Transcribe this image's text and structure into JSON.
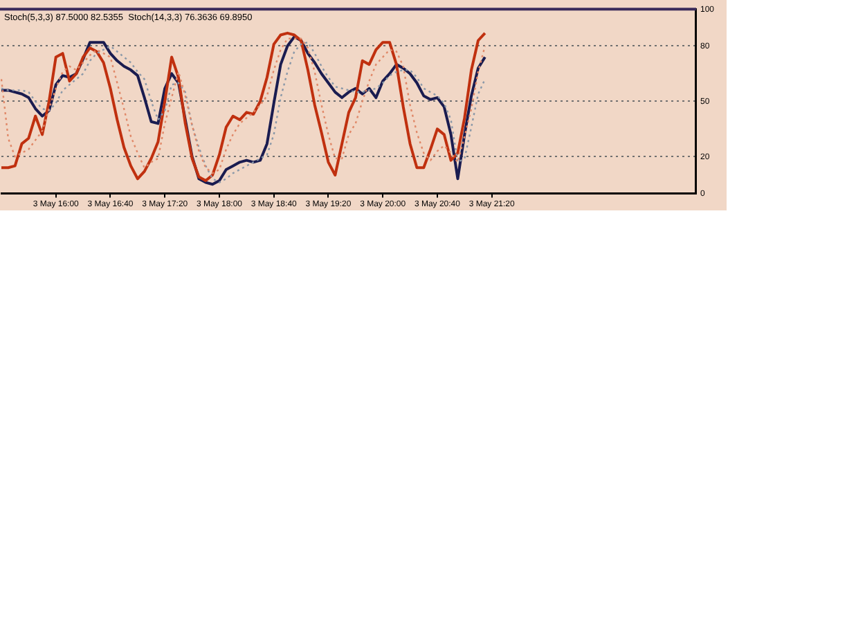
{
  "chart_data": {
    "type": "line",
    "title": "Stoch(5,3,3) 87.5000 82.5355  Stoch(14,3,3) 76.3636 69.8950",
    "categories": [
      null,
      null,
      null,
      null,
      null,
      null,
      null,
      null,
      "3 May 16:00",
      null,
      null,
      null,
      null,
      null,
      null,
      null,
      "3 May 16:40",
      null,
      null,
      null,
      null,
      null,
      null,
      null,
      "3 May 17:20",
      null,
      null,
      null,
      null,
      null,
      null,
      null,
      "3 May 18:00",
      null,
      null,
      null,
      null,
      null,
      null,
      null,
      "3 May 18:40",
      null,
      null,
      null,
      null,
      null,
      null,
      null,
      "3 May 19:20",
      null,
      null,
      null,
      null,
      null,
      null,
      null,
      "3 May 20:00",
      null,
      null,
      null,
      null,
      null,
      null,
      null,
      "3 May 20:40",
      null,
      null,
      null,
      null,
      null,
      null,
      null,
      "3 May 21:20",
      null,
      null,
      null,
      null,
      null,
      null,
      null,
      null,
      null,
      null,
      null,
      null,
      null,
      null,
      null,
      null,
      null,
      null,
      null,
      null,
      null,
      null,
      null,
      null,
      null,
      null,
      null,
      null,
      null,
      null
    ],
    "ylim": [
      0,
      100
    ],
    "yticks": [
      0,
      20,
      50,
      80,
      100
    ],
    "grid": "y",
    "legend": false,
    "series": [
      {
        "color": "#e08868",
        "line_style": "dotted",
        "values": [
          62,
          30,
          20,
          22,
          24,
          29,
          34,
          46,
          57,
          66,
          69,
          67,
          71,
          75,
          78,
          76,
          74,
          60,
          46,
          31,
          22,
          14,
          17,
          19,
          38,
          52,
          66,
          53,
          37,
          23,
          14,
          11,
          13,
          24,
          32,
          38,
          41,
          44,
          48,
          53,
          67,
          78,
          84,
          84,
          84,
          79,
          66,
          48,
          32,
          19,
          19,
          32,
          38,
          50,
          61,
          70,
          74,
          78,
          77,
          69,
          48,
          33,
          22,
          18,
          23,
          26,
          22,
          17,
          31,
          46,
          66,
          80,
          null,
          null,
          null,
          null,
          null,
          null,
          null,
          null,
          null,
          null,
          null,
          null,
          null,
          null,
          null,
          null,
          null,
          null,
          null,
          null,
          null,
          null,
          null,
          null,
          null,
          null,
          null,
          null,
          null,
          null,
          null
        ]
      },
      {
        "color": "#8a98a8",
        "line_style": "dotted",
        "values": [
          57,
          56,
          56,
          56,
          55,
          50,
          46,
          45,
          49,
          56,
          59,
          62,
          65,
          72,
          76,
          78,
          80,
          77,
          74,
          71,
          66,
          62,
          50,
          40,
          45,
          59,
          60,
          55,
          37,
          25,
          15,
          8,
          6,
          8,
          11,
          13,
          15,
          17,
          19,
          21,
          32,
          52,
          66,
          77,
          81,
          82,
          76,
          69,
          63,
          58,
          57,
          56,
          55,
          55,
          56,
          57,
          60,
          64,
          66,
          67,
          67,
          63,
          57,
          55,
          53,
          49,
          40,
          17,
          19,
          36,
          54,
          62,
          null,
          null,
          null,
          null,
          null,
          null,
          null,
          null,
          null,
          null,
          null,
          null,
          null,
          null,
          null,
          null,
          null,
          null,
          null,
          null,
          null,
          null,
          null,
          null,
          null,
          null,
          null,
          null,
          null,
          null,
          null
        ]
      },
      {
        "color": "#c0300f",
        "line_style": "solid",
        "values": [
          14,
          14,
          15,
          27,
          30,
          42,
          32,
          50,
          74,
          76,
          61,
          65,
          74,
          79,
          77,
          71,
          57,
          40,
          25,
          15,
          8,
          12,
          19,
          28,
          50,
          74,
          63,
          38,
          19,
          9,
          7,
          10,
          21,
          36,
          42,
          40,
          44,
          43,
          50,
          63,
          81,
          86,
          87,
          86,
          83,
          67,
          48,
          33,
          17,
          10,
          27,
          44,
          52,
          72,
          70,
          78,
          82,
          82,
          70,
          47,
          27,
          14,
          14,
          24,
          35,
          32,
          18,
          22,
          41,
          67,
          83,
          87,
          null,
          null,
          null,
          null,
          null,
          null,
          null,
          null,
          null,
          null,
          null,
          null,
          null,
          null,
          null,
          null,
          null,
          null,
          null,
          null,
          null,
          null,
          null,
          null,
          null,
          null,
          null,
          null,
          null,
          null,
          null
        ]
      },
      {
        "color": "#1a1c50",
        "line_style": "solid",
        "values": [
          56,
          56,
          55,
          54,
          52,
          46,
          42,
          45,
          59,
          64,
          63,
          65,
          73,
          82,
          82,
          82,
          76,
          72,
          69,
          67,
          64,
          52,
          39,
          38,
          57,
          65,
          60,
          40,
          20,
          8,
          6,
          5,
          7,
          13,
          15,
          17,
          18,
          17,
          18,
          27,
          49,
          70,
          80,
          85,
          83,
          76,
          71,
          65,
          60,
          55,
          52,
          55,
          57,
          54,
          57,
          52,
          61,
          65,
          70,
          68,
          65,
          60,
          53,
          51,
          52,
          47,
          32,
          8,
          32,
          53,
          68,
          74,
          null,
          null,
          null,
          null,
          null,
          null,
          null,
          null,
          null,
          null,
          null,
          null,
          null,
          null,
          null,
          null,
          null,
          null,
          null,
          null,
          null,
          null,
          null,
          null,
          null,
          null,
          null,
          null,
          null,
          null,
          null
        ]
      }
    ]
  }
}
